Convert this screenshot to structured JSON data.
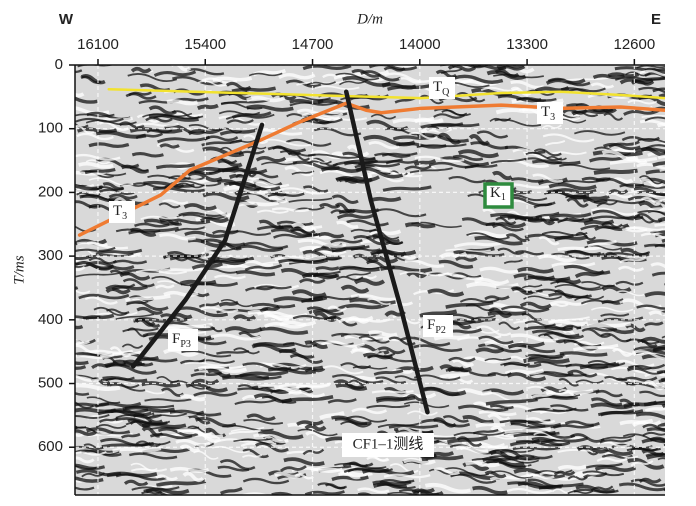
{
  "chart_data": {
    "type": "seismic-section",
    "corner_left": "W",
    "corner_right": "E",
    "x_label": "D/m",
    "y_label": "T/ms",
    "xlim": [
      16250,
      12400
    ],
    "ylim": [
      0,
      675
    ],
    "xticks": [
      16100,
      15400,
      14700,
      14000,
      13300,
      12600
    ],
    "yticks": [
      0,
      100,
      200,
      300,
      400,
      500,
      600
    ],
    "grid": true,
    "series": [
      {
        "name": "T",
        "subscript": "Q",
        "color": "#f2e22e",
        "x": [
          16030,
          14450,
          13990,
          13470,
          13080,
          12690,
          12400
        ],
        "values": [
          38,
          49,
          52,
          44,
          42,
          47,
          52
        ]
      },
      {
        "name": "T",
        "subscript": "3",
        "color": "#ef7b32",
        "x": [
          16220,
          15690,
          15500,
          15040,
          14780,
          14480,
          14350,
          14250,
          13990,
          13470,
          13080,
          12690,
          12400
        ],
        "values": [
          267,
          204,
          165,
          118,
          89,
          60,
          71,
          75,
          68,
          63,
          68,
          66,
          71
        ]
      },
      {
        "name": "F",
        "subscript": "P3",
        "color": "#1a1a1a",
        "x": [
          15870,
          15530,
          15270,
          15030
        ],
        "values": [
          473,
          369,
          275,
          94
        ]
      },
      {
        "name": "F",
        "subscript": "P2",
        "color": "#1a1a1a",
        "x": [
          14480,
          14320,
          14120,
          13950
        ],
        "values": [
          42,
          212,
          385,
          545
        ]
      }
    ],
    "annotations": [
      {
        "text": "K",
        "subscript": "1",
        "color": "#2e8b3e"
      },
      {
        "text": "CF1–1测线"
      }
    ]
  }
}
